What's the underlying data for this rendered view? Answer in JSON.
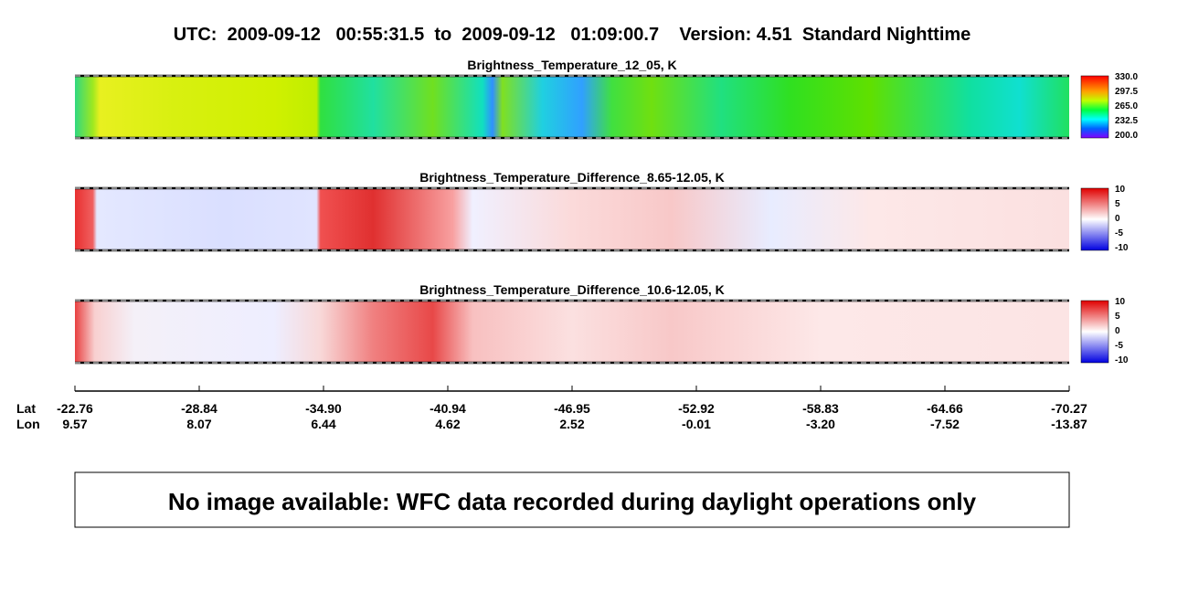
{
  "header": {
    "title": "UTC:  2009-09-12   00:55:31.5  to  2009-09-12   01:09:00.7    Version: 4.51  Standard Nighttime"
  },
  "panels": [
    {
      "title": "Brightness_Temperature_12_05, K",
      "colorbar_labels": [
        "330.0",
        "297.5",
        "265.0",
        "232.5",
        "200.0"
      ]
    },
    {
      "title": "Brightness_Temperature_Difference_8.65-12.05, K",
      "colorbar_labels": [
        "10",
        "5",
        "0",
        "-5",
        "-10"
      ]
    },
    {
      "title": "Brightness_Temperature_Difference_10.6-12.05, K",
      "colorbar_labels": [
        "10",
        "5",
        "0",
        "-5",
        "-10"
      ]
    }
  ],
  "axis": {
    "lat_label": "Lat",
    "lon_label": "Lon",
    "lat": [
      "-22.76",
      "-28.84",
      "-34.90",
      "-40.94",
      "-46.95",
      "-52.92",
      "-58.83",
      "-64.66",
      "-70.27"
    ],
    "lon": [
      "9.57",
      "8.07",
      "6.44",
      "4.62",
      "2.52",
      "-0.01",
      "-3.20",
      "-7.52",
      "-13.87"
    ]
  },
  "message": "No image available: WFC data recorded during daylight operations only"
}
